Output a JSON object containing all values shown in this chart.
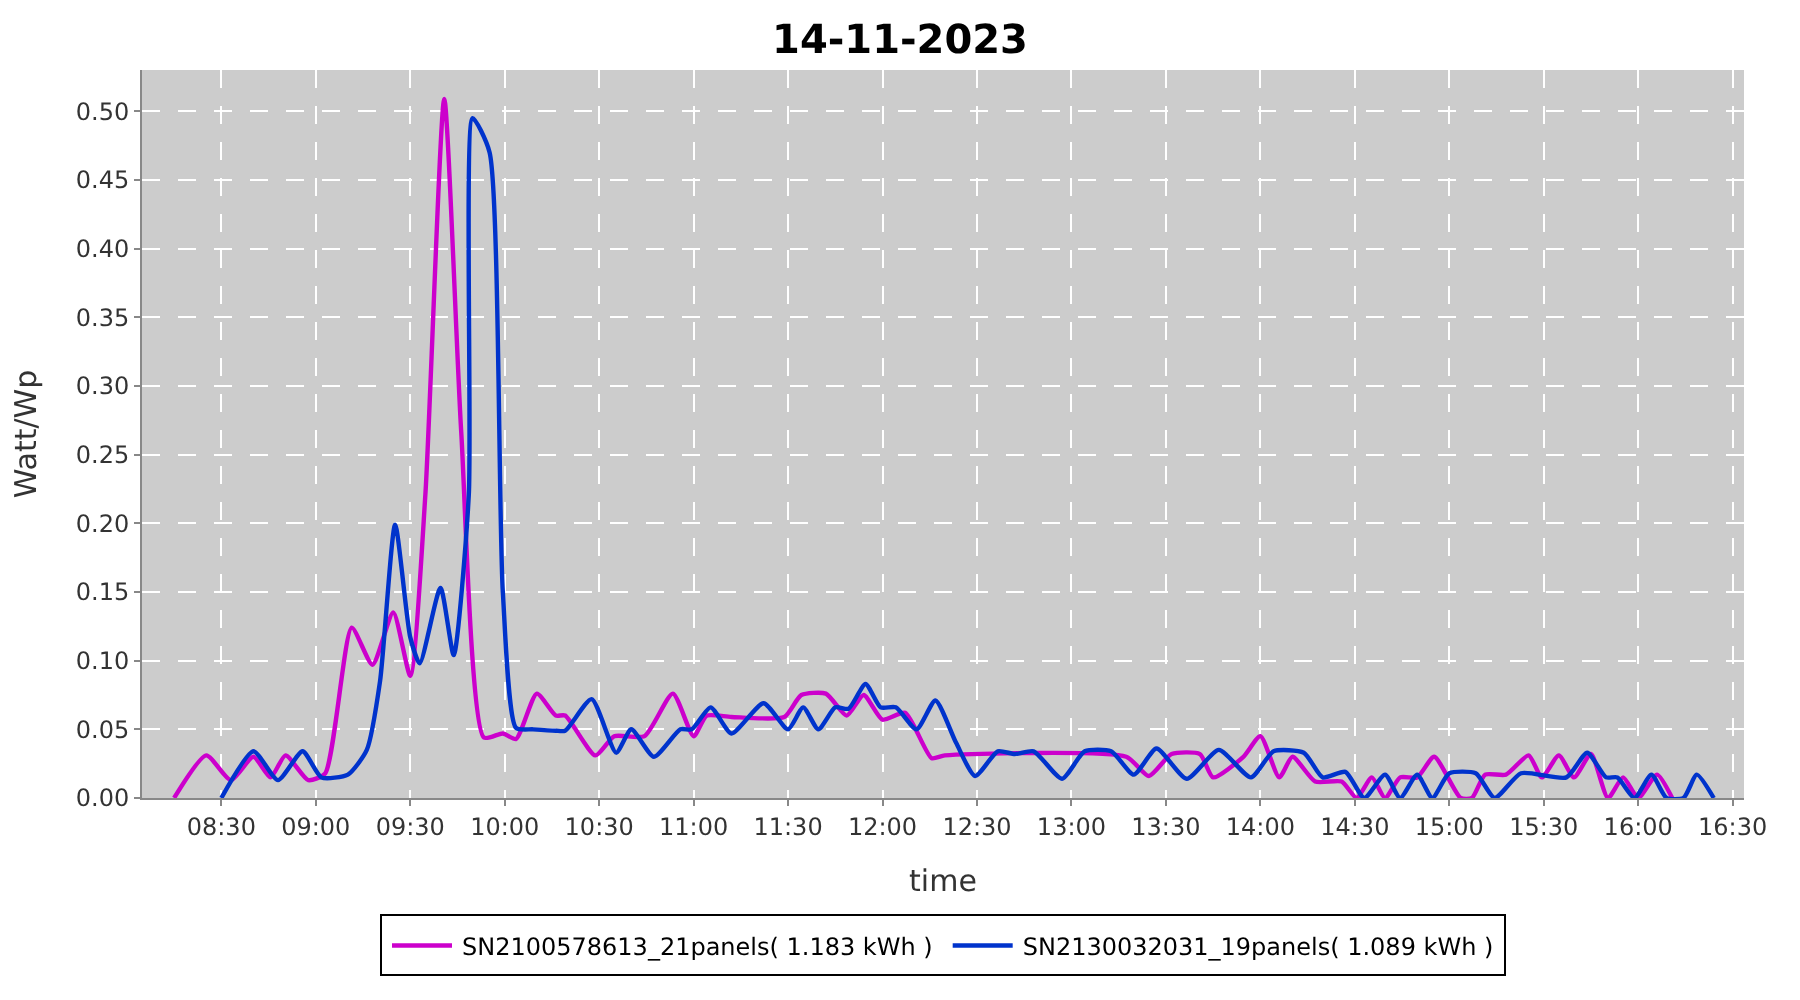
{
  "chart_data": {
    "type": "line",
    "title": "14-11-2023",
    "xlabel": "time",
    "ylabel": "Watt/Wp",
    "xlim": [
      8.08,
      16.56
    ],
    "xticks": [
      {
        "value": 8.5,
        "label": "08:30"
      },
      {
        "value": 9,
        "label": "09:00"
      },
      {
        "value": 9.5,
        "label": "09:30"
      },
      {
        "value": 10,
        "label": "10:00"
      },
      {
        "value": 10.5,
        "label": "10:30"
      },
      {
        "value": 11,
        "label": "11:00"
      },
      {
        "value": 11.5,
        "label": "11:30"
      },
      {
        "value": 12,
        "label": "12:00"
      },
      {
        "value": 12.5,
        "label": "12:30"
      },
      {
        "value": 13,
        "label": "13:00"
      },
      {
        "value": 13.5,
        "label": "13:30"
      },
      {
        "value": 14,
        "label": "14:00"
      },
      {
        "value": 14.5,
        "label": "14:30"
      },
      {
        "value": 15,
        "label": "15:00"
      },
      {
        "value": 15.5,
        "label": "15:30"
      },
      {
        "value": 16,
        "label": "16:00"
      },
      {
        "value": 16.5,
        "label": "16:30"
      }
    ],
    "ylim": [
      0,
      0.53
    ],
    "yticks": [
      {
        "value": 0,
        "label": "0.00"
      },
      {
        "value": 0.05,
        "label": "0.05"
      },
      {
        "value": 0.1,
        "label": "0.10"
      },
      {
        "value": 0.15,
        "label": "0.15"
      },
      {
        "value": 0.2,
        "label": "0.20"
      },
      {
        "value": 0.25,
        "label": "0.25"
      },
      {
        "value": 0.3,
        "label": "0.30"
      },
      {
        "value": 0.35,
        "label": "0.35"
      },
      {
        "value": 0.4,
        "label": "0.40"
      },
      {
        "value": 0.45,
        "label": "0.45"
      },
      {
        "value": 0.5,
        "label": "0.50"
      }
    ],
    "grid": true,
    "legend": "bottom",
    "marker": "none",
    "line_style": "solid",
    "series": [
      {
        "name": "SN2100578613_21panels( 1.183 kWh )",
        "color": "#cc00cc",
        "x": [
          8.25,
          8.42,
          8.55,
          8.67,
          8.76,
          8.84,
          8.96,
          9.05,
          9.19,
          9.3,
          9.41,
          9.5,
          9.58,
          9.68,
          9.77,
          9.89,
          9.99,
          10.06,
          10.17,
          10.27,
          10.32,
          10.48,
          10.58,
          10.74,
          10.89,
          11.0,
          11.07,
          11.2,
          11.48,
          11.57,
          11.7,
          11.81,
          11.9,
          12.0,
          12.12,
          12.26,
          12.33,
          13.29,
          13.41,
          13.53,
          13.68,
          13.75,
          13.91,
          14.0,
          14.1,
          14.17,
          14.29,
          14.43,
          14.51,
          14.59,
          14.66,
          14.74,
          14.83,
          14.92,
          15.06,
          15.12,
          15.19,
          15.3,
          15.42,
          15.49,
          15.58,
          15.66,
          15.75,
          15.84,
          15.92,
          16.0,
          16.1,
          16.18
        ],
        "values": [
          0,
          0.031,
          0.013,
          0.03,
          0.015,
          0.031,
          0.013,
          0.018,
          0.124,
          0.097,
          0.135,
          0.089,
          0.221,
          0.509,
          0.266,
          0.044,
          0.047,
          0.043,
          0.076,
          0.06,
          0.06,
          0.031,
          0.045,
          0.045,
          0.076,
          0.045,
          0.06,
          0.059,
          0.059,
          0.075,
          0.076,
          0.06,
          0.075,
          0.057,
          0.062,
          0.029,
          0.031,
          0.03,
          0.016,
          0.032,
          0.032,
          0.015,
          0.03,
          0.045,
          0.015,
          0.03,
          0.012,
          0.012,
          0,
          0.015,
          0,
          0.015,
          0.015,
          0.03,
          0,
          0,
          0.017,
          0.017,
          0.031,
          0.015,
          0.031,
          0.015,
          0.032,
          0,
          0.015,
          0,
          0.017,
          0
        ]
      },
      {
        "name": "SN2130032031_19panels( 1.089 kWh )",
        "color": "#0033cc",
        "x": [
          8.5,
          8.67,
          8.8,
          8.93,
          9.03,
          9.17,
          9.27,
          9.34,
          9.42,
          9.5,
          9.55,
          9.66,
          9.73,
          9.81,
          9.83,
          9.92,
          9.99,
          10.06,
          10.15,
          10.27,
          10.32,
          10.46,
          10.59,
          10.67,
          10.79,
          10.93,
          10.99,
          11.09,
          11.2,
          11.37,
          11.5,
          11.58,
          11.66,
          11.75,
          11.82,
          11.91,
          11.99,
          12.07,
          12.18,
          12.28,
          12.39,
          12.49,
          12.61,
          12.7,
          12.8,
          12.95,
          13.07,
          13.21,
          13.33,
          13.45,
          13.61,
          13.78,
          13.95,
          14.07,
          14.23,
          14.33,
          14.45,
          14.55,
          14.66,
          14.74,
          14.83,
          14.91,
          15.0,
          15.14,
          15.24,
          15.38,
          15.62,
          15.73,
          15.83,
          15.89,
          15.98,
          16.07,
          16.15,
          16.24,
          16.31,
          16.4
        ],
        "values": [
          0,
          0.034,
          0.013,
          0.034,
          0.015,
          0.017,
          0.035,
          0.085,
          0.199,
          0.117,
          0.098,
          0.153,
          0.104,
          0.221,
          0.495,
          0.47,
          0.15,
          0.051,
          0.05,
          0.049,
          0.049,
          0.072,
          0.033,
          0.05,
          0.03,
          0.05,
          0.05,
          0.066,
          0.047,
          0.069,
          0.05,
          0.066,
          0.05,
          0.066,
          0.065,
          0.083,
          0.066,
          0.066,
          0.05,
          0.071,
          0.04,
          0.016,
          0.034,
          0.032,
          0.034,
          0.014,
          0.034,
          0.034,
          0.017,
          0.036,
          0.014,
          0.035,
          0.015,
          0.034,
          0.033,
          0.015,
          0.019,
          0,
          0.017,
          0,
          0.017,
          0,
          0.018,
          0.018,
          0,
          0.018,
          0.015,
          0.033,
          0.015,
          0.015,
          0,
          0.017,
          0,
          0,
          0.017,
          0
        ]
      }
    ]
  }
}
